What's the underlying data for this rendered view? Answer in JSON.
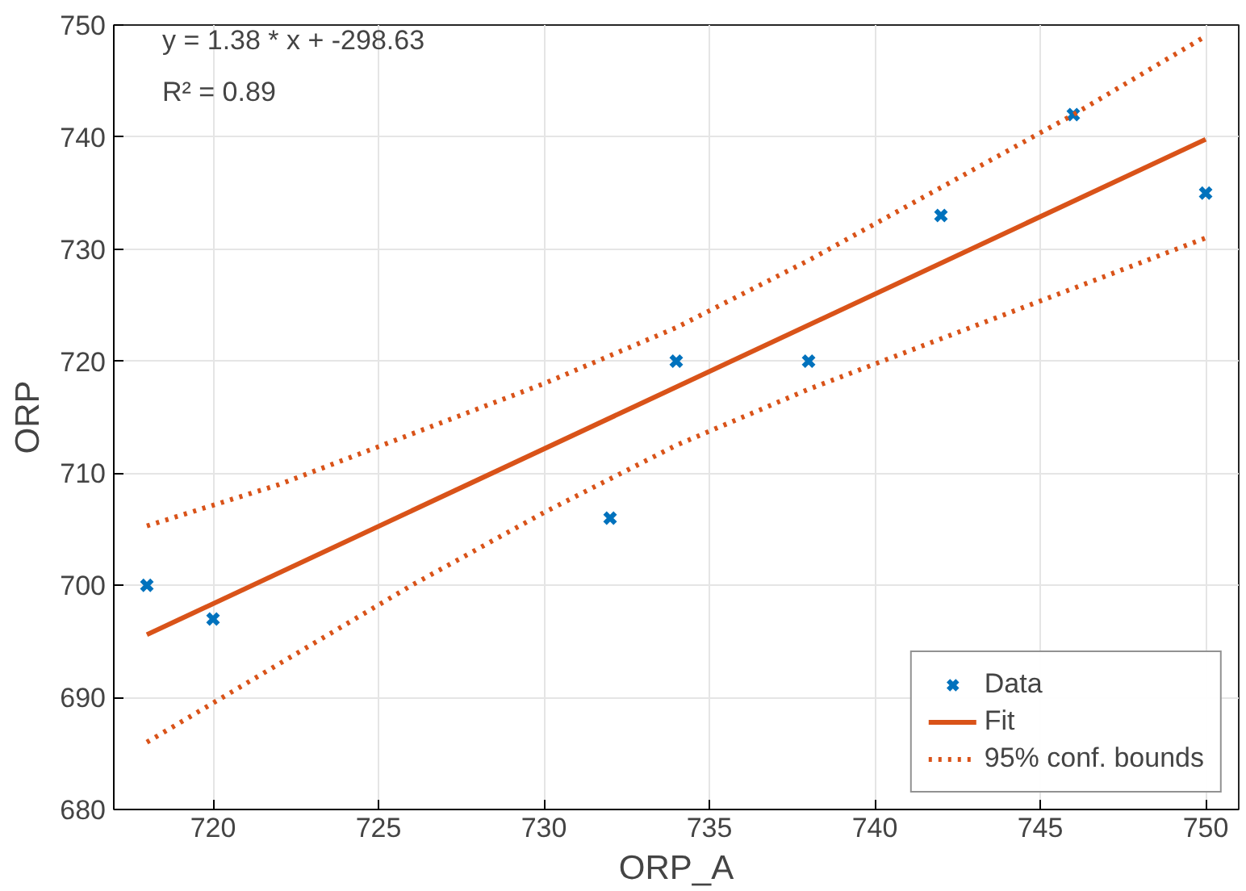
{
  "chart_data": {
    "type": "scatter",
    "xlabel": "ORP_A",
    "ylabel": "ORP",
    "xlim": [
      717,
      751
    ],
    "ylim": [
      680,
      750
    ],
    "xticks": [
      720,
      725,
      730,
      735,
      740,
      745,
      750
    ],
    "yticks": [
      680,
      690,
      700,
      710,
      720,
      730,
      740,
      750
    ],
    "grid": true,
    "legend": "bottom right",
    "annotations": [
      {
        "text": "y = 1.38 * x + -298.63"
      },
      {
        "text": "R² = 0.89"
      }
    ],
    "series": [
      {
        "name": "Data",
        "marker": "cross",
        "color": "#0072bd",
        "x": [
          718,
          720,
          732,
          734,
          738,
          742,
          746,
          750
        ],
        "values": [
          700,
          697,
          706,
          720,
          720,
          733,
          742,
          735
        ]
      },
      {
        "name": "Fit",
        "type": "line",
        "line_style": "solid",
        "color": "#d95319",
        "x": [
          718,
          750
        ],
        "values": [
          695.6,
          739.8
        ]
      },
      {
        "name": "95% conf. bounds",
        "type": "line",
        "line_style": "dotted",
        "color": "#d95319",
        "x": [
          718,
          722,
          726,
          730,
          734,
          738,
          742,
          746,
          750
        ],
        "values": [
          705.3,
          709,
          713.5,
          718,
          723,
          729,
          735.5,
          742,
          749
        ]
      },
      {
        "type": "line",
        "line_style": "dotted",
        "color": "#d95319",
        "x": [
          718,
          722,
          726,
          730,
          734,
          738,
          742,
          746,
          750
        ],
        "values": [
          686,
          693,
          700,
          706.5,
          712.5,
          717.5,
          722,
          726.5,
          731
        ]
      }
    ]
  }
}
